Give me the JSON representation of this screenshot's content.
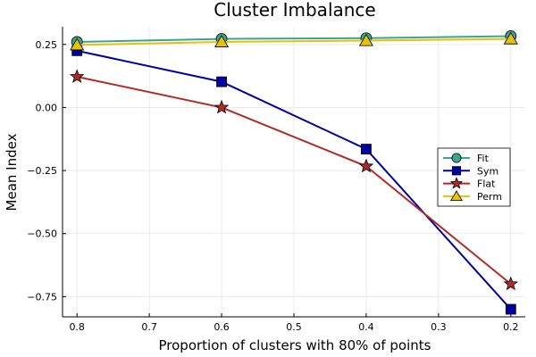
{
  "chart_data": {
    "type": "line",
    "title": "Cluster Imbalance",
    "xlabel": "Proportion of clusters with 80% of points",
    "ylabel": "Mean Index",
    "x_reversed": true,
    "xlim": [
      0.18,
      0.82
    ],
    "ylim": [
      -0.83,
      0.32
    ],
    "x_ticks": [
      0.8,
      0.7,
      0.6,
      0.5,
      0.4,
      0.3,
      0.2
    ],
    "x_tick_labels": [
      "0.8",
      "0.7",
      "0.6",
      "0.5",
      "0.4",
      "0.3",
      "0.2"
    ],
    "y_ticks": [
      0.25,
      0.0,
      -0.25,
      -0.5,
      -0.75
    ],
    "y_tick_labels": [
      "0.25",
      "0.00",
      "−0.25",
      "−0.50",
      "−0.75"
    ],
    "grid": true,
    "legend_position": "right",
    "x": [
      0.8,
      0.6,
      0.4,
      0.2
    ],
    "series": [
      {
        "name": "Fit",
        "values": [
          0.26,
          0.272,
          0.275,
          0.283
        ],
        "color": "#3da491",
        "marker": "circle"
      },
      {
        "name": "Sym",
        "values": [
          0.225,
          0.102,
          -0.165,
          -0.8
        ],
        "color": "#0000a0",
        "marker": "square"
      },
      {
        "name": "Flat",
        "values": [
          0.122,
          0.0,
          -0.233,
          -0.7
        ],
        "color": "#b22a28",
        "marker": "star"
      },
      {
        "name": "Perm",
        "values": [
          0.248,
          0.26,
          0.265,
          0.272
        ],
        "color": "#e5c10e",
        "marker": "triangle"
      }
    ]
  }
}
